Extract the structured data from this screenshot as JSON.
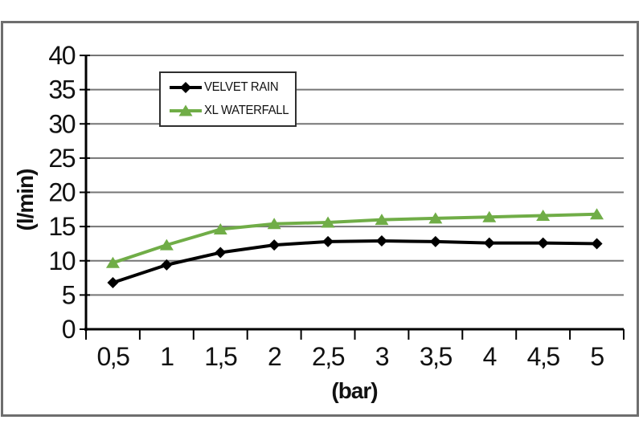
{
  "chart_data": {
    "type": "line",
    "x": [
      0.5,
      1,
      1.5,
      2,
      2.5,
      3,
      3.5,
      4,
      4.5,
      5
    ],
    "x_ticklabels": [
      "0,5",
      "1",
      "1,5",
      "2",
      "2,5",
      "3",
      "3,5",
      "4",
      "4,5",
      "5"
    ],
    "series": [
      {
        "name": "VELVET RAIN",
        "color": "#000000",
        "marker": "diamond",
        "values": [
          6.8,
          9.4,
          11.2,
          12.3,
          12.8,
          12.9,
          12.8,
          12.6,
          12.6,
          12.5
        ]
      },
      {
        "name": "XL WATERFALL",
        "color": "#70ad47",
        "marker": "triangle",
        "values": [
          9.7,
          12.3,
          14.6,
          15.4,
          15.6,
          16.0,
          16.2,
          16.4,
          16.6,
          16.8
        ]
      }
    ],
    "xlabel": "(bar)",
    "ylabel": "(l/min)",
    "ylim": [
      0,
      40
    ],
    "ytick_step": 5,
    "grid": true,
    "legend_position": "top-center-inside",
    "colors": {
      "gridline": "#757575",
      "axis": "#000000",
      "frame_border": "#6e6e6e",
      "legend_border": "#2f2f2f",
      "plot_background": "#ffffff"
    }
  }
}
